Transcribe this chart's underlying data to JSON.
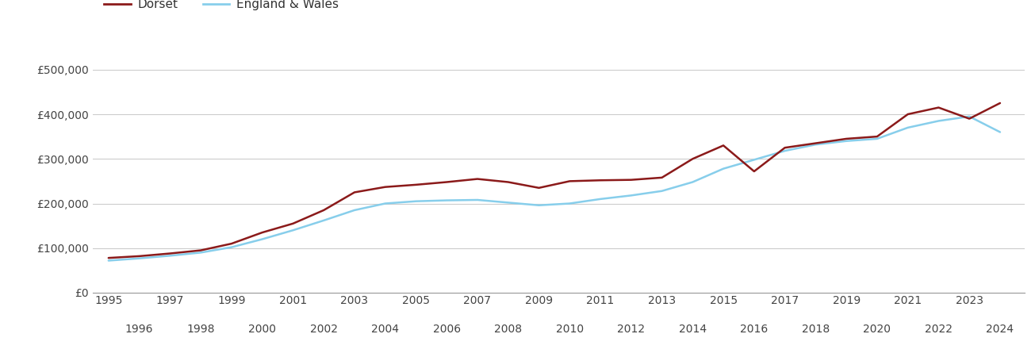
{
  "dorset_years": [
    1995,
    1996,
    1997,
    1998,
    1999,
    2000,
    2001,
    2002,
    2003,
    2004,
    2005,
    2006,
    2007,
    2008,
    2009,
    2010,
    2011,
    2012,
    2013,
    2014,
    2015,
    2016,
    2017,
    2018,
    2019,
    2020,
    2021,
    2022,
    2023,
    2024
  ],
  "dorset_values": [
    78000,
    82000,
    88000,
    95000,
    110000,
    135000,
    155000,
    185000,
    225000,
    237000,
    242000,
    248000,
    255000,
    248000,
    235000,
    250000,
    252000,
    253000,
    258000,
    300000,
    330000,
    272000,
    325000,
    335000,
    345000,
    350000,
    400000,
    415000,
    390000,
    425000
  ],
  "england_years": [
    1995,
    1996,
    1997,
    1998,
    1999,
    2000,
    2001,
    2002,
    2003,
    2004,
    2005,
    2006,
    2007,
    2008,
    2009,
    2010,
    2011,
    2012,
    2013,
    2014,
    2015,
    2016,
    2017,
    2018,
    2019,
    2020,
    2021,
    2022,
    2023,
    2024
  ],
  "england_values": [
    72000,
    77000,
    83000,
    90000,
    102000,
    120000,
    140000,
    162000,
    185000,
    200000,
    205000,
    207000,
    208000,
    202000,
    196000,
    200000,
    210000,
    218000,
    228000,
    248000,
    278000,
    298000,
    318000,
    332000,
    340000,
    345000,
    370000,
    385000,
    395000,
    360000
  ],
  "dorset_color": "#8B1A1A",
  "england_color": "#87CEEB",
  "dorset_label": "Dorset",
  "england_label": "England & Wales",
  "ylim": [
    0,
    560000
  ],
  "yticks": [
    0,
    100000,
    200000,
    300000,
    400000,
    500000
  ],
  "ytick_labels": [
    "£0",
    "£100,000",
    "£200,000",
    "£300,000",
    "£400,000",
    "£500,000"
  ],
  "grid_color": "#cccccc",
  "bg_color": "#ffffff",
  "line_width": 1.8,
  "legend_fontsize": 11,
  "tick_fontsize": 10,
  "xlim_left": 1994.5,
  "xlim_right": 2024.8
}
